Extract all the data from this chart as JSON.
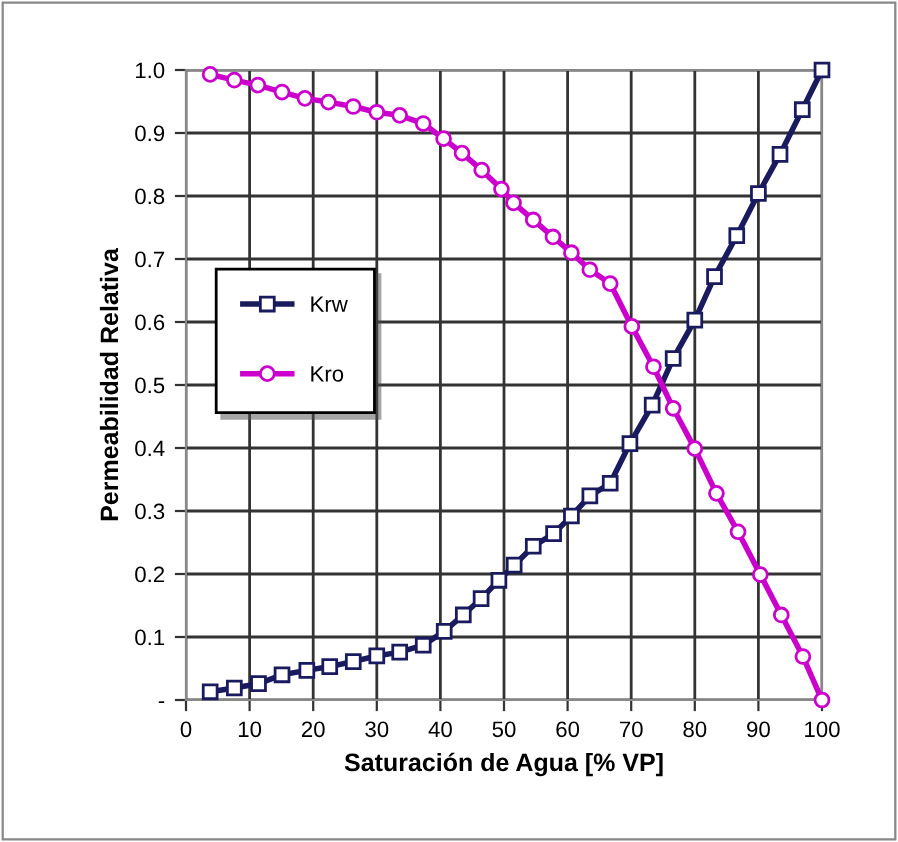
{
  "chart_data": {
    "type": "line",
    "xlabel": "Saturación de Agua [% VP]",
    "ylabel": "Permeabilidad Relativa",
    "xlim": [
      0,
      100
    ],
    "ylim": [
      0,
      1.0
    ],
    "xticks": [
      0,
      10,
      20,
      30,
      40,
      50,
      60,
      70,
      80,
      90,
      100
    ],
    "yticks": [
      {
        "value": 0,
        "label": "-"
      },
      0.1,
      0.2,
      0.3,
      0.4,
      0.5,
      0.6,
      0.7,
      0.8,
      0.9,
      {
        "value": 1.0,
        "label": "1.0"
      }
    ],
    "grid": true,
    "legend": "left",
    "series": [
      {
        "name": "Krw",
        "color": "#1a1a5e",
        "marker": "square",
        "x": [
          3.8,
          7.6,
          11.4,
          15.1,
          19,
          22.6,
          26.3,
          30,
          33.6,
          37.3,
          40.6,
          43.6,
          46.4,
          49.2,
          51.6,
          54.6,
          57.8,
          60.6,
          63.5,
          66.7,
          69.8,
          73.3,
          76.6,
          80,
          83.1,
          86.6,
          90,
          93.4,
          96.9,
          100
        ],
        "values": [
          0.013,
          0.019,
          0.026,
          0.04,
          0.047,
          0.053,
          0.061,
          0.07,
          0.076,
          0.087,
          0.109,
          0.135,
          0.161,
          0.19,
          0.214,
          0.244,
          0.264,
          0.292,
          0.324,
          0.344,
          0.407,
          0.468,
          0.542,
          0.603,
          0.672,
          0.737,
          0.804,
          0.866,
          0.937,
          1.0
        ]
      },
      {
        "name": "Kro",
        "color": "#cc00cc",
        "marker": "circle",
        "x": [
          3.8,
          7.6,
          11.3,
          15.1,
          18.7,
          22.4,
          26.3,
          30,
          33.6,
          37.3,
          40.5,
          43.4,
          46.5,
          49.6,
          51.5,
          54.6,
          57.7,
          60.6,
          63.5,
          66.7,
          70.1,
          73.5,
          76.6,
          80,
          83.4,
          86.8,
          90.3,
          93.6,
          97,
          100
        ],
        "values": [
          0.993,
          0.984,
          0.976,
          0.965,
          0.955,
          0.949,
          0.942,
          0.933,
          0.928,
          0.915,
          0.891,
          0.868,
          0.841,
          0.811,
          0.789,
          0.762,
          0.735,
          0.71,
          0.683,
          0.661,
          0.593,
          0.529,
          0.463,
          0.399,
          0.328,
          0.267,
          0.199,
          0.135,
          0.069,
          0.0
        ]
      }
    ]
  }
}
